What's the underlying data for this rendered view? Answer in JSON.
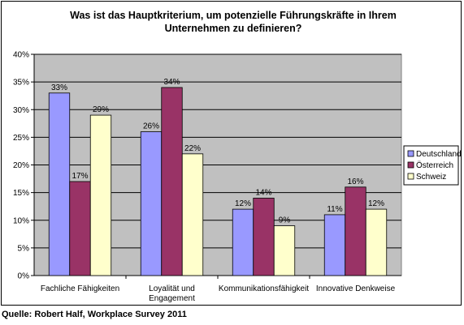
{
  "chart_data": {
    "type": "bar",
    "title_lines": [
      "Was ist das Hauptkriterium, um potenzielle Führungskräfte in Ihrem",
      "Unternehmen zu definieren?"
    ],
    "categories": [
      [
        "Fachliche Fähigkeiten"
      ],
      [
        "Loyalität und",
        "Engagement"
      ],
      [
        "Kommunikationsfähigkeit"
      ],
      [
        "Innovative Denkweise"
      ]
    ],
    "series": [
      {
        "name": "Deutschland",
        "color": "#9999ff",
        "values": [
          33,
          26,
          12,
          11
        ],
        "labels": [
          "33%",
          "26%",
          "12%",
          "11%"
        ]
      },
      {
        "name": "Österreich",
        "color": "#993366",
        "values": [
          17,
          34,
          14,
          16
        ],
        "labels": [
          "17%",
          "34%",
          "14%",
          "16%"
        ]
      },
      {
        "name": "Schweiz",
        "color": "#ffffcc",
        "values": [
          29,
          22,
          9,
          12
        ],
        "labels": [
          "29%",
          "22%",
          "9%",
          "12%"
        ]
      }
    ],
    "ylim": [
      0,
      40
    ],
    "yticks": [
      "0%",
      "5%",
      "10%",
      "15%",
      "20%",
      "25%",
      "30%",
      "35%",
      "40%"
    ],
    "ytick_values": [
      0,
      5,
      10,
      15,
      20,
      25,
      30,
      35,
      40
    ],
    "plot_background": "#c0c0c0",
    "grid": true,
    "legend_position": "right"
  },
  "source": "Quelle: Robert Half, Workplace Survey 2011"
}
